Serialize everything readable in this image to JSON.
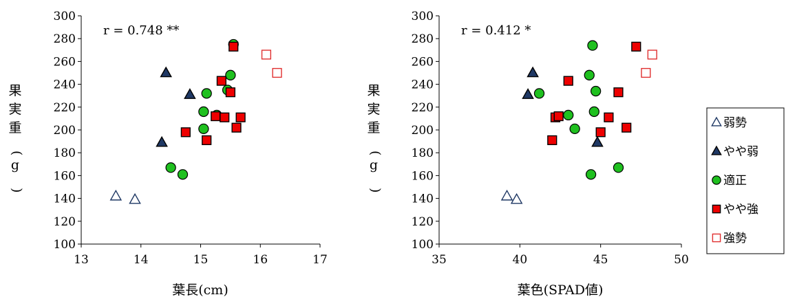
{
  "legend": {
    "items": [
      {
        "label": "弱勢",
        "marker": "triangle",
        "fill": "#ffffff",
        "stroke": "#1f3864"
      },
      {
        "label": "やや弱",
        "marker": "triangle",
        "fill": "#1f3864",
        "stroke": "#000000"
      },
      {
        "label": "適正",
        "marker": "circle",
        "fill": "#1fc01f",
        "stroke": "#000000"
      },
      {
        "label": "やや強",
        "marker": "square",
        "fill": "#ee0000",
        "stroke": "#000000"
      },
      {
        "label": "強勢",
        "marker": "square",
        "fill": "#ffffff",
        "stroke": "#e03030"
      }
    ]
  },
  "chart_data": [
    {
      "type": "scatter",
      "xlabel": "葉長(cm)",
      "ylabel": "果実重(g)",
      "annotation": "r = 0.748 **",
      "xlim": [
        13,
        17
      ],
      "ylim": [
        100,
        300
      ],
      "xticks": [
        13,
        14,
        15,
        16,
        17
      ],
      "yticks": [
        100,
        120,
        140,
        160,
        180,
        200,
        220,
        240,
        260,
        280,
        300
      ],
      "series": [
        {
          "name": "弱勢",
          "points": [
            [
              13.58,
              142
            ],
            [
              13.9,
              139
            ]
          ]
        },
        {
          "name": "やや弱",
          "points": [
            [
              14.35,
              189
            ],
            [
              14.42,
              250
            ],
            [
              14.82,
              231
            ]
          ]
        },
        {
          "name": "適正",
          "points": [
            [
              14.5,
              167
            ],
            [
              14.7,
              161
            ],
            [
              15.05,
              201
            ],
            [
              15.05,
              216
            ],
            [
              15.1,
              232
            ],
            [
              15.27,
              213
            ],
            [
              15.45,
              235
            ],
            [
              15.5,
              248
            ],
            [
              15.55,
              275
            ]
          ]
        },
        {
          "name": "やや強",
          "points": [
            [
              14.75,
              198
            ],
            [
              15.1,
              191
            ],
            [
              15.25,
              212
            ],
            [
              15.35,
              243
            ],
            [
              15.4,
              211
            ],
            [
              15.5,
              233
            ],
            [
              15.55,
              273
            ],
            [
              15.6,
              202
            ],
            [
              15.67,
              211
            ]
          ]
        },
        {
          "name": "強勢",
          "points": [
            [
              16.1,
              266
            ],
            [
              16.28,
              250
            ]
          ]
        }
      ]
    },
    {
      "type": "scatter",
      "xlabel": "葉色(SPAD値)",
      "ylabel": "果実重(g)",
      "annotation": "r = 0.412 *",
      "xlim": [
        35,
        50
      ],
      "ylim": [
        100,
        300
      ],
      "xticks": [
        35,
        40,
        45,
        50
      ],
      "yticks": [
        100,
        120,
        140,
        160,
        180,
        200,
        220,
        240,
        260,
        280,
        300
      ],
      "series": [
        {
          "name": "弱勢",
          "points": [
            [
              39.2,
              142
            ],
            [
              39.8,
              139
            ]
          ]
        },
        {
          "name": "やや弱",
          "points": [
            [
              40.5,
              231
            ],
            [
              40.8,
              250
            ],
            [
              44.8,
              189
            ]
          ]
        },
        {
          "name": "適正",
          "points": [
            [
              41.2,
              232
            ],
            [
              43.0,
              213
            ],
            [
              43.4,
              201
            ],
            [
              44.3,
              248
            ],
            [
              44.4,
              161
            ],
            [
              44.5,
              274
            ],
            [
              44.6,
              216
            ],
            [
              44.7,
              234
            ],
            [
              46.1,
              167
            ]
          ]
        },
        {
          "name": "やや強",
          "points": [
            [
              42.0,
              191
            ],
            [
              42.2,
              211
            ],
            [
              42.4,
              212
            ],
            [
              43.0,
              243
            ],
            [
              45.0,
              198
            ],
            [
              45.5,
              211
            ],
            [
              46.1,
              233
            ],
            [
              46.6,
              202
            ],
            [
              47.2,
              273
            ]
          ]
        },
        {
          "name": "強勢",
          "points": [
            [
              47.8,
              250
            ],
            [
              48.2,
              266
            ]
          ]
        }
      ]
    }
  ]
}
